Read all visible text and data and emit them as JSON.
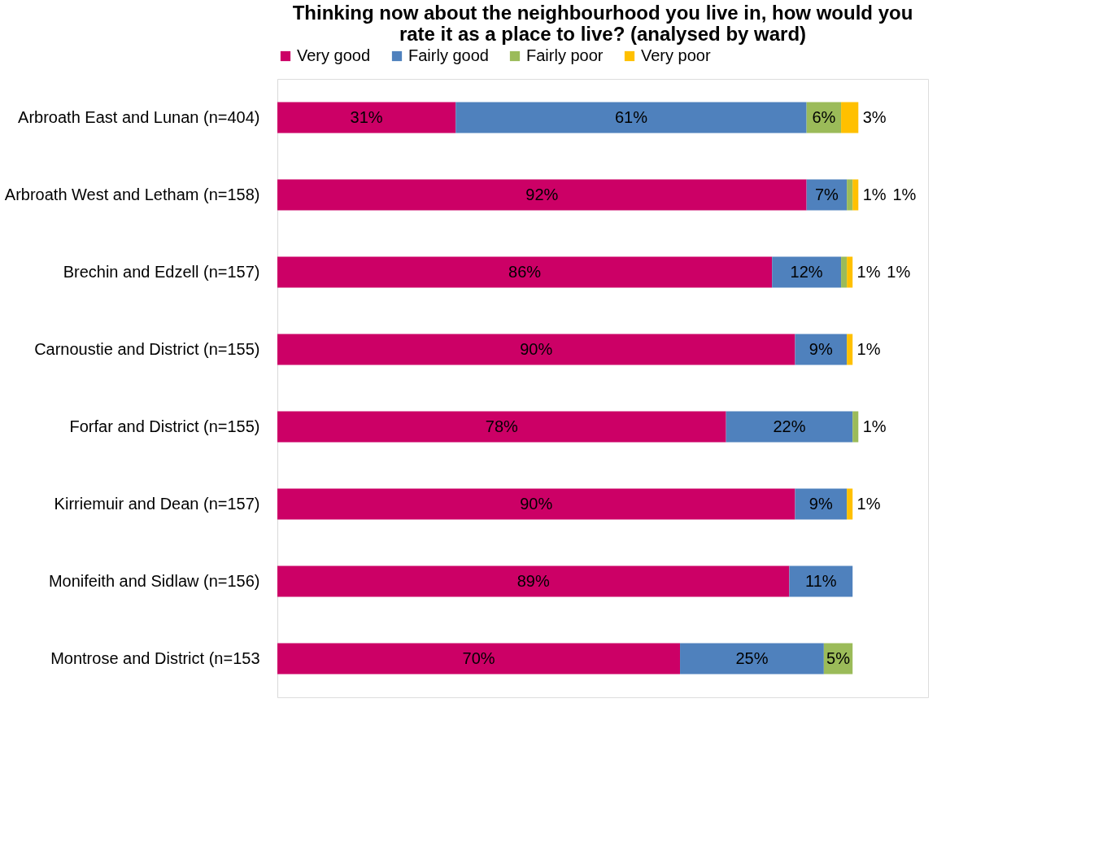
{
  "chart_data": {
    "type": "bar",
    "orientation": "horizontal",
    "stacked": true,
    "legend": "top",
    "title": "Thinking now about the neighbourhood you live in, how would you rate it as a place to live? (analysed by ward)",
    "categories": [
      "Arbroath East and Lunan (n=404)",
      "Arbroath West and Letham (n=158)",
      "Brechin and Edzell (n=157)",
      "Carnoustie and District (n=155)",
      "Forfar and District (n=155)",
      "Kirriemuir and Dean (n=157)",
      "Monifeith and Sidlaw (n=156)",
      "Montrose and District (n=153"
    ],
    "series": [
      {
        "name": "Very good",
        "color": "#cc0066",
        "values": [
          31,
          92,
          86,
          90,
          78,
          90,
          89,
          70
        ],
        "value_labels": [
          "31%",
          "92%",
          "86%",
          "90%",
          "78%",
          "90%",
          "89%",
          "70%"
        ]
      },
      {
        "name": "Fairly good",
        "color": "#4f81bd",
        "values": [
          61,
          7,
          12,
          9,
          22,
          9,
          11,
          25
        ],
        "value_labels": [
          "61%",
          "7%",
          "12%",
          "9%",
          "22%",
          "9%",
          "11%",
          "25%"
        ]
      },
      {
        "name": "Fairly poor",
        "color": "#9bbb59",
        "values": [
          6,
          1,
          1,
          null,
          1,
          null,
          null,
          5
        ],
        "value_labels": [
          "6%",
          "1%",
          "1%",
          null,
          "1%",
          null,
          null,
          "5%"
        ]
      },
      {
        "name": "Very poor",
        "color": "#ffc000",
        "values": [
          3,
          1,
          1,
          1,
          null,
          1,
          null,
          null
        ],
        "value_labels": [
          "3%",
          "1%",
          "1%",
          "1%",
          null,
          "1%",
          null,
          null
        ]
      }
    ]
  }
}
